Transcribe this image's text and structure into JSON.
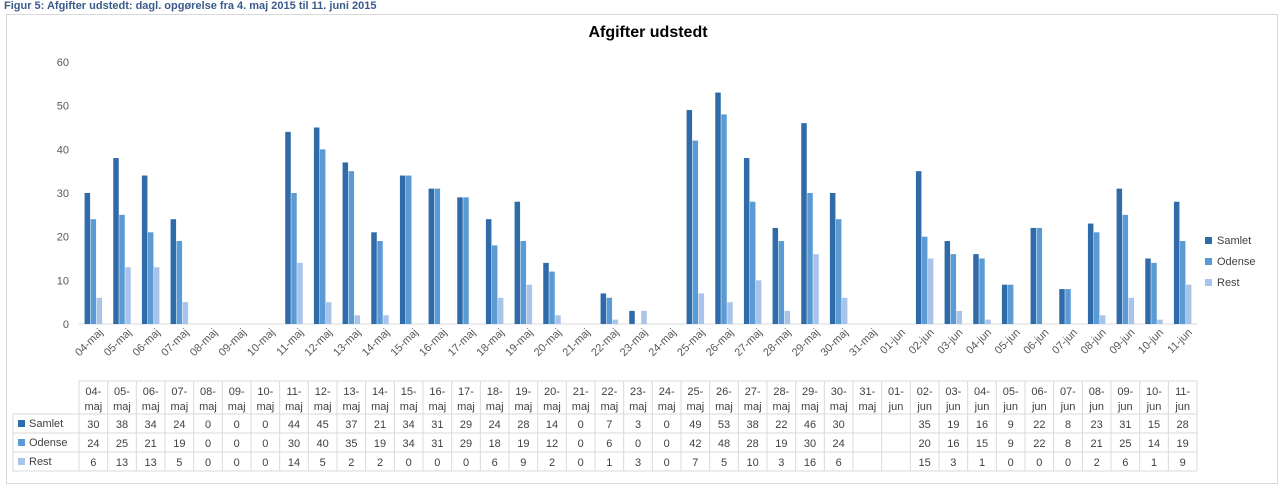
{
  "caption": "Figur 5: Afgifter udstedt: dagl. opgørelse fra 4. maj 2015 til 11. juni 2015",
  "colors": {
    "samlet": "#2E6BA8",
    "odense": "#5B9BD5",
    "rest": "#A9C4EB",
    "grid": "#D9D9D9"
  },
  "chart_data": {
    "type": "bar",
    "title": "Afgifter udstedt",
    "ylim": [
      0,
      60
    ],
    "yticks": [
      0,
      10,
      20,
      30,
      40,
      50,
      60
    ],
    "grid": false,
    "legend_position": "right",
    "categories": [
      "04-maj",
      "05-maj",
      "06-maj",
      "07-maj",
      "08-maj",
      "09-maj",
      "10-maj",
      "11-maj",
      "12-maj",
      "13-maj",
      "14-maj",
      "15-maj",
      "16-maj",
      "17-maj",
      "18-maj",
      "19-maj",
      "20-maj",
      "21-maj",
      "22-maj",
      "23-maj",
      "24-maj",
      "25-maj",
      "26-maj",
      "27-maj",
      "28-maj",
      "29-maj",
      "30-maj",
      "31-maj",
      "01-jun",
      "02-jun",
      "03-jun",
      "04-jun",
      "05-jun",
      "06-jun",
      "07-jun",
      "08-jun",
      "09-jun",
      "10-jun",
      "11-jun"
    ],
    "table_categories": [
      [
        "04-",
        "maj"
      ],
      [
        "05-",
        "maj"
      ],
      [
        "06-",
        "maj"
      ],
      [
        "07-",
        "maj"
      ],
      [
        "08-",
        "maj"
      ],
      [
        "09-",
        "maj"
      ],
      [
        "10-",
        "maj"
      ],
      [
        "11-",
        "maj"
      ],
      [
        "12-",
        "maj"
      ],
      [
        "13-",
        "maj"
      ],
      [
        "14-",
        "maj"
      ],
      [
        "15-",
        "maj"
      ],
      [
        "16-",
        "maj"
      ],
      [
        "17-",
        "maj"
      ],
      [
        "18-",
        "maj"
      ],
      [
        "19-",
        "maj"
      ],
      [
        "20-",
        "maj"
      ],
      [
        "21-",
        "maj"
      ],
      [
        "22-",
        "maj"
      ],
      [
        "23-",
        "maj"
      ],
      [
        "24-",
        "maj"
      ],
      [
        "25-",
        "maj"
      ],
      [
        "26-",
        "maj"
      ],
      [
        "27-",
        "maj"
      ],
      [
        "28-",
        "maj"
      ],
      [
        "29-",
        "maj"
      ],
      [
        "30-",
        "maj"
      ],
      [
        "31-",
        "maj"
      ],
      [
        "01-",
        "jun"
      ],
      [
        "02-",
        "jun"
      ],
      [
        "03-",
        "jun"
      ],
      [
        "04-",
        "jun"
      ],
      [
        "05-",
        "jun"
      ],
      [
        "06-",
        "jun"
      ],
      [
        "07-",
        "jun"
      ],
      [
        "08-",
        "jun"
      ],
      [
        "09-",
        "jun"
      ],
      [
        "10-",
        "jun"
      ],
      [
        "11-",
        "jun"
      ]
    ],
    "series": [
      {
        "name": "Samlet",
        "values": [
          30,
          38,
          34,
          24,
          0,
          0,
          0,
          44,
          45,
          37,
          21,
          34,
          31,
          29,
          24,
          28,
          14,
          0,
          7,
          3,
          0,
          49,
          53,
          38,
          22,
          46,
          30,
          null,
          null,
          35,
          19,
          16,
          9,
          22,
          8,
          23,
          31,
          15,
          28
        ]
      },
      {
        "name": "Odense",
        "values": [
          24,
          25,
          21,
          19,
          0,
          0,
          0,
          30,
          40,
          35,
          19,
          34,
          31,
          29,
          18,
          19,
          12,
          0,
          6,
          0,
          0,
          42,
          48,
          28,
          19,
          30,
          24,
          null,
          null,
          20,
          16,
          15,
          9,
          22,
          8,
          21,
          25,
          14,
          19
        ]
      },
      {
        "name": "Rest",
        "values": [
          6,
          13,
          13,
          5,
          0,
          0,
          0,
          14,
          5,
          2,
          2,
          0,
          0,
          0,
          6,
          9,
          2,
          0,
          1,
          3,
          0,
          7,
          5,
          10,
          3,
          16,
          6,
          null,
          null,
          15,
          3,
          1,
          0,
          0,
          0,
          2,
          6,
          1,
          9
        ]
      }
    ]
  }
}
